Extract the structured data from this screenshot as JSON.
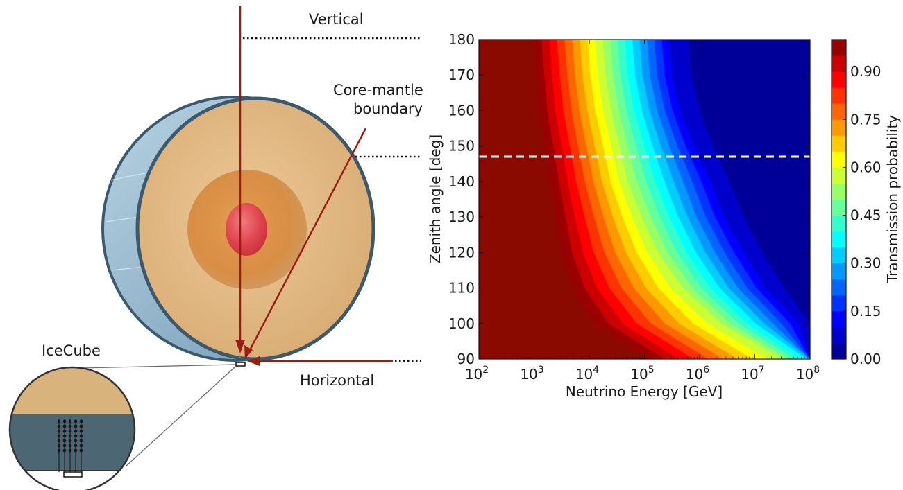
{
  "diagram": {
    "labels": {
      "vertical": "Vertical",
      "core_mantle_line1": "Core-mantle",
      "core_mantle_line2": "boundary",
      "horizontal": "Horizontal",
      "icecube": "IceCube"
    },
    "colors": {
      "arrow": "#9b1c10",
      "crust": "#e3b983",
      "outer_core": "#dc9446",
      "inner_core": "#e0454e",
      "ocean_shell": "#5d7f95"
    }
  },
  "chart_data": {
    "type": "heatmap",
    "xlabel": "Neutrino Energy [GeV]",
    "ylabel": "Zenith angle [deg]",
    "x_scale": "log",
    "x_ticks": [
      {
        "value": 100,
        "base": "10",
        "exp": "2"
      },
      {
        "value": 1000,
        "base": "10",
        "exp": "3"
      },
      {
        "value": 10000,
        "base": "10",
        "exp": "4"
      },
      {
        "value": 100000,
        "base": "10",
        "exp": "5"
      },
      {
        "value": 1000000,
        "base": "10",
        "exp": "6"
      },
      {
        "value": 10000000,
        "base": "10",
        "exp": "7"
      },
      {
        "value": 100000000,
        "base": "10",
        "exp": "8"
      }
    ],
    "xlim": [
      100,
      100000000
    ],
    "y_ticks": [
      "90",
      "100",
      "110",
      "120",
      "130",
      "140",
      "150",
      "160",
      "170",
      "180"
    ],
    "ylim": [
      90,
      180
    ],
    "colorbar": {
      "label": "Transmission probability",
      "ticks": [
        "0.00",
        "0.15",
        "0.30",
        "0.45",
        "0.60",
        "0.75",
        "0.90"
      ],
      "range": [
        0,
        1
      ],
      "levels": 20,
      "colormap": "jet"
    },
    "reference_line": {
      "zenith": 147,
      "style": "dashed",
      "color": "#ffffff"
    },
    "transmission_contours": {
      "zenith_samples": [
        90,
        100,
        110,
        120,
        130,
        140,
        150,
        160,
        170,
        180
      ],
      "series": [
        {
          "transmission": 0.95,
          "log10_energy": [
            5.1,
            4.1,
            3.7,
            3.5,
            3.4,
            3.3,
            3.2,
            3.1,
            3.05,
            3.0
          ]
        },
        {
          "transmission": 0.5,
          "log10_energy": [
            7.5,
            6.4,
            5.7,
            5.25,
            4.95,
            4.7,
            4.55,
            4.4,
            4.3,
            4.25
          ]
        },
        {
          "transmission": 0.05,
          "log10_energy": [
            8.5,
            7.8,
            7.2,
            6.8,
            6.45,
            6.2,
            5.9,
            5.65,
            5.5,
            5.45
          ]
        }
      ]
    }
  }
}
